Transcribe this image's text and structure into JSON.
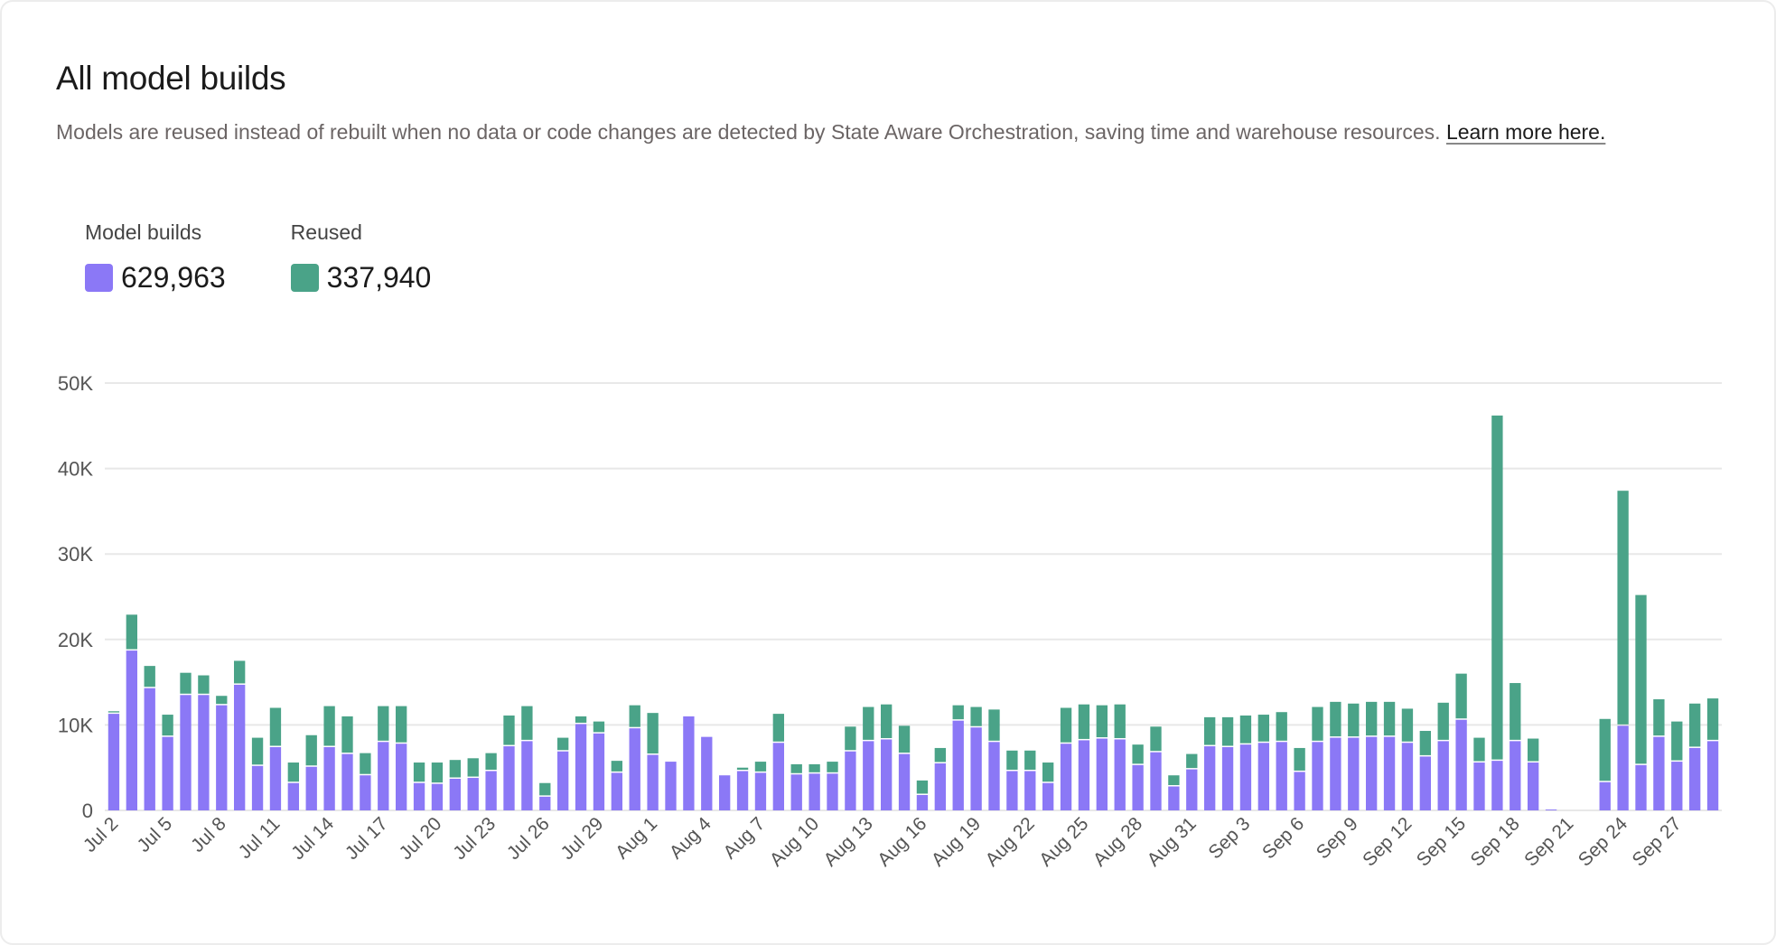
{
  "header": {
    "title": "All model builds",
    "description": "Models are reused instead of rebuilt when no data or code changes are detected by State Aware Orchestration, saving time and warehouse resources.",
    "link_label": "Learn more here."
  },
  "legend": [
    {
      "label": "Model builds",
      "value": "629,963",
      "color": "#8b78f6"
    },
    {
      "label": "Reused",
      "value": "337,940",
      "color": "#4aa388"
    }
  ],
  "chart_data": {
    "type": "bar",
    "stacked": true,
    "title": "",
    "xlabel": "",
    "ylabel": "",
    "ylim": [
      0,
      50000
    ],
    "yticks": [
      "0",
      "10K",
      "20K",
      "30K",
      "40K",
      "50K"
    ],
    "grid": true,
    "xtick_labels": [
      "Jul 2",
      "Jul 5",
      "Jul 8",
      "Jul 11",
      "Jul 14",
      "Jul 17",
      "Jul 20",
      "Jul 23",
      "Jul 26",
      "Jul 29",
      "Aug 1",
      "Aug 4",
      "Aug 7",
      "Aug 10",
      "Aug 13",
      "Aug 16",
      "Aug 19",
      "Aug 22",
      "Aug 25",
      "Aug 28",
      "Aug 31",
      "Sep 3",
      "Sep 6",
      "Sep 9",
      "Sep 12",
      "Sep 15",
      "Sep 18",
      "Sep 21",
      "Sep 24",
      "Sep 27"
    ],
    "categories": [
      "Jul 2",
      "Jul 3",
      "Jul 4",
      "Jul 5",
      "Jul 6",
      "Jul 7",
      "Jul 8",
      "Jul 9",
      "Jul 10",
      "Jul 11",
      "Jul 12",
      "Jul 13",
      "Jul 14",
      "Jul 15",
      "Jul 16",
      "Jul 17",
      "Jul 18",
      "Jul 19",
      "Jul 20",
      "Jul 21",
      "Jul 22",
      "Jul 23",
      "Jul 24",
      "Jul 25",
      "Jul 26",
      "Jul 27",
      "Jul 28",
      "Jul 29",
      "Jul 30",
      "Jul 31",
      "Aug 1",
      "Aug 2",
      "Aug 3",
      "Aug 4",
      "Aug 5",
      "Aug 6",
      "Aug 7",
      "Aug 8",
      "Aug 9",
      "Aug 10",
      "Aug 11",
      "Aug 12",
      "Aug 13",
      "Aug 14",
      "Aug 15",
      "Aug 16",
      "Aug 17",
      "Aug 18",
      "Aug 19",
      "Aug 20",
      "Aug 21",
      "Aug 22",
      "Aug 23",
      "Aug 24",
      "Aug 25",
      "Aug 26",
      "Aug 27",
      "Aug 28",
      "Aug 29",
      "Aug 30",
      "Aug 31",
      "Sep 1",
      "Sep 2",
      "Sep 3",
      "Sep 4",
      "Sep 5",
      "Sep 6",
      "Sep 7",
      "Sep 8",
      "Sep 9",
      "Sep 10",
      "Sep 11",
      "Sep 12",
      "Sep 13",
      "Sep 14",
      "Sep 15",
      "Sep 16",
      "Sep 17",
      "Sep 18",
      "Sep 19",
      "Sep 20",
      "Sep 21",
      "Sep 22",
      "Sep 23",
      "Sep 24",
      "Sep 25",
      "Sep 26",
      "Sep 27",
      "Sep 28",
      "Sep 29"
    ],
    "series": [
      {
        "name": "Model builds",
        "color": "#8b78f6",
        "values": [
          11300,
          18700,
          14300,
          8600,
          13500,
          13500,
          12300,
          14700,
          5200,
          7400,
          3200,
          5100,
          7400,
          6600,
          4100,
          8000,
          7800,
          3200,
          3100,
          3700,
          3800,
          4600,
          7500,
          8100,
          1600,
          6900,
          10100,
          9000,
          4400,
          9600,
          6500,
          5700,
          11000,
          8600,
          4100,
          4600,
          4400,
          7900,
          4200,
          4300,
          4300,
          6900,
          8100,
          8300,
          6600,
          1800,
          5500,
          10500,
          9700,
          8000,
          4600,
          4600,
          3200,
          7800,
          8200,
          8400,
          8300,
          5300,
          6800,
          2800,
          4800,
          7500,
          7400,
          7700,
          7900,
          8000,
          4500,
          8000,
          8500,
          8500,
          8600,
          8600,
          7900,
          6300,
          8100,
          10600,
          5600,
          5800,
          8100,
          5600,
          100,
          0,
          0,
          3300,
          9900,
          5300,
          8600,
          5700,
          7300,
          8100
        ]
      },
      {
        "name": "Reused",
        "color": "#4aa388",
        "values": [
          300,
          4200,
          2600,
          2600,
          2600,
          2300,
          1100,
          2800,
          3300,
          4600,
          2400,
          3700,
          4800,
          4400,
          2600,
          4200,
          4400,
          2400,
          2500,
          2200,
          2300,
          2100,
          3600,
          4100,
          1600,
          1600,
          900,
          1400,
          1400,
          2700,
          4900,
          0,
          0,
          0,
          0,
          400,
          1300,
          3400,
          1200,
          1100,
          1400,
          2900,
          4000,
          4100,
          3300,
          1700,
          1800,
          1800,
          2400,
          3800,
          2400,
          2400,
          2400,
          4200,
          4200,
          3900,
          4100,
          2400,
          3000,
          1300,
          1800,
          3400,
          3500,
          3400,
          3300,
          3500,
          2800,
          4100,
          4200,
          4000,
          4100,
          4100,
          4000,
          3000,
          4500,
          5400,
          2900,
          40400,
          6800,
          2800,
          0,
          0,
          0,
          7400,
          27500,
          19900,
          4400,
          4700,
          5200,
          5000
        ]
      }
    ]
  }
}
